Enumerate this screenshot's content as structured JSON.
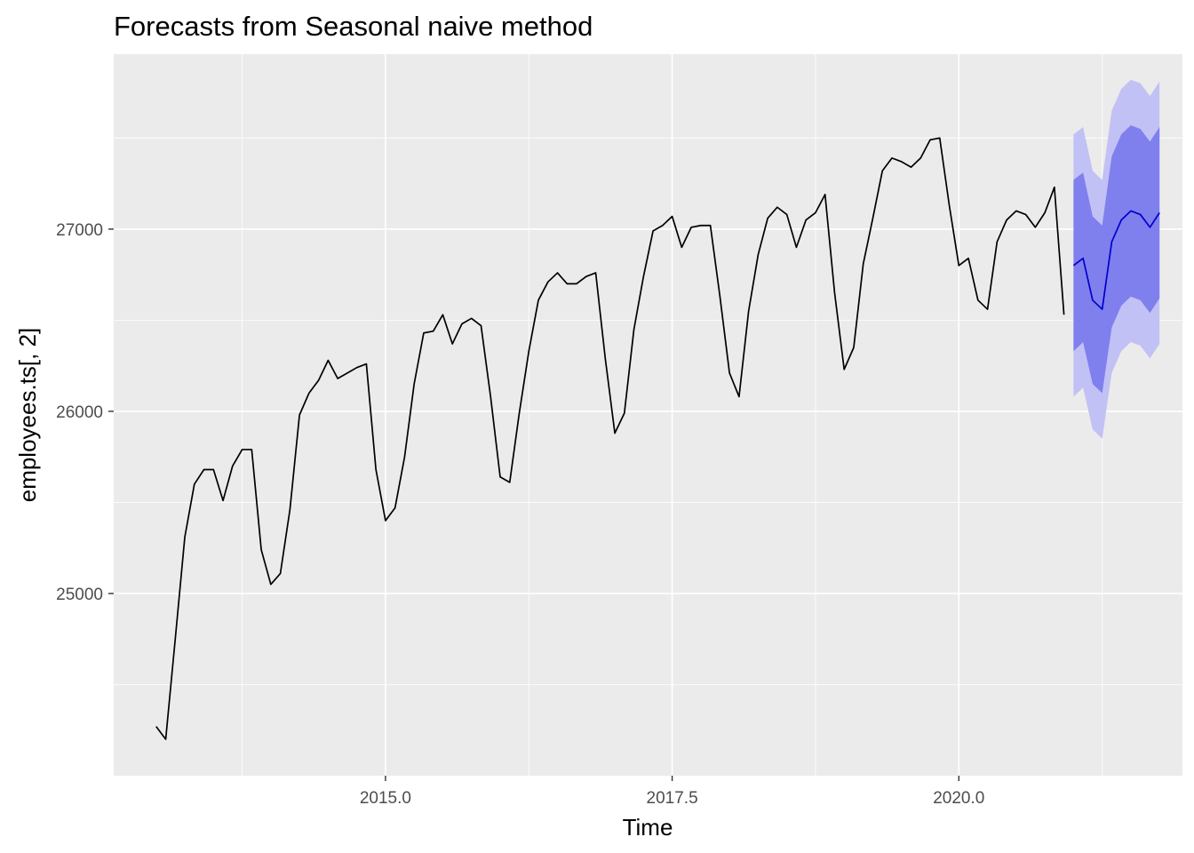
{
  "chart_data": {
    "type": "line",
    "title": "Forecasts from Seasonal naive method",
    "xlabel": "Time",
    "ylabel": "employees.ts[, 2]",
    "xlim": [
      2012.63,
      2021.95
    ],
    "ylim": [
      24000,
      27960
    ],
    "x_ticks": [
      2015.0,
      2017.5,
      2020.0
    ],
    "x_tick_labels": [
      "2015.0",
      "2017.5",
      "2020.0"
    ],
    "y_ticks": [
      25000,
      26000,
      27000
    ],
    "y_tick_labels": [
      "25000",
      "26000",
      "27000"
    ],
    "grid": true,
    "legend": "none",
    "colors": {
      "panel": "#ebebeb",
      "grid": "#ffffff",
      "history": "#000000",
      "forecast": "#0000cc",
      "pi80": "#7f7fee",
      "pi95": "#c1c1f5"
    },
    "series": [
      {
        "x_start": 2013.0,
        "step": 0.0833333,
        "values": [
          24270,
          24200,
          24750,
          25310,
          25600,
          25680,
          25680,
          25510,
          25700,
          25790,
          25790,
          25240,
          25050,
          25110,
          25460,
          25980,
          26100,
          26170,
          26280,
          26180,
          26210,
          26240,
          26260,
          25680,
          25400,
          25470,
          25750,
          26150,
          26430,
          26440,
          26530,
          26370,
          26480,
          26510,
          26470,
          26080,
          25640,
          25610,
          25990,
          26330,
          26610,
          26710,
          26760,
          26700,
          26700,
          26740,
          26760,
          26290,
          25880,
          25990,
          26450,
          26740,
          26990,
          27020,
          27070,
          26900,
          27010,
          27020,
          27020,
          26630,
          26210,
          26080,
          26550,
          26860,
          27060,
          27120,
          27080,
          26900,
          27050,
          27090,
          27190,
          26650,
          26230,
          26350,
          26810,
          27060,
          27320,
          27390,
          27370,
          27340,
          27390,
          27490,
          27500,
          27130,
          26800,
          26840,
          26610,
          26560,
          26930,
          27050,
          27100,
          27080,
          27010,
          27090,
          27230,
          26530
        ]
      },
      {
        "x_start": 2021.0,
        "step": 0.0833333,
        "mean": [
          26800,
          26840,
          26610,
          26560,
          26930,
          27050,
          27100,
          27080,
          27010,
          27090
        ],
        "lo80": [
          26330,
          26380,
          26150,
          26100,
          26460,
          26580,
          26630,
          26610,
          26540,
          26620
        ],
        "hi80": [
          27270,
          27310,
          27070,
          27020,
          27400,
          27520,
          27570,
          27550,
          27480,
          27560
        ],
        "lo95": [
          26080,
          26130,
          25900,
          25850,
          26210,
          26330,
          26380,
          26360,
          26290,
          26370
        ],
        "hi95": [
          27520,
          27560,
          27320,
          27270,
          27650,
          27770,
          27820,
          27800,
          27730,
          27810
        ]
      }
    ]
  }
}
